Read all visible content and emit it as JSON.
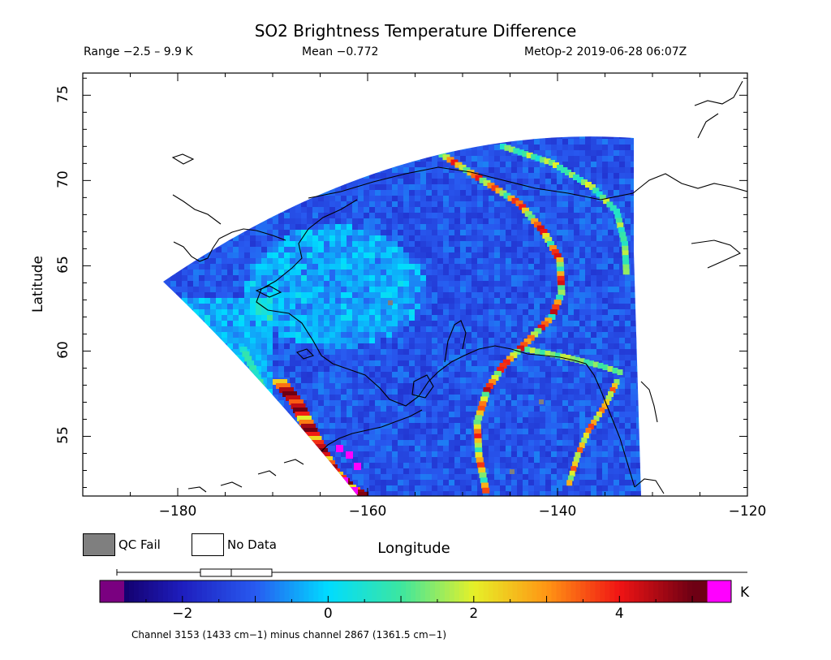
{
  "header": {
    "title": "SO2 Brightness Temperature Difference",
    "range": "Range −2.5 – 9.9 K",
    "mean": "Mean −0.772",
    "satellite": "MetOp-2 2019-06-28 06:07Z"
  },
  "axes": {
    "xlabel": "Longitude",
    "ylabel": "Latitude",
    "x_ticks": [
      "−180",
      "−160",
      "−140",
      "−120"
    ],
    "x_values": [
      -180,
      -160,
      -140,
      -120
    ],
    "y_ticks": [
      "55",
      "60",
      "65",
      "70",
      "75"
    ],
    "y_values": [
      55,
      60,
      65,
      70,
      75
    ],
    "xlim": [
      -190,
      -120
    ],
    "ylim": [
      51.5,
      76.3
    ]
  },
  "legend": {
    "qc_fail_label": "QC Fail",
    "no_data_label": "No Data",
    "qc_fail_color": "#7f7f7f",
    "no_data_color": "#ffffff"
  },
  "colorbar": {
    "unit": "K",
    "tick_labels": [
      "−2",
      "0",
      "2",
      "4"
    ],
    "tick_values": [
      -2,
      0,
      2,
      4
    ],
    "range": [
      -2.8,
      5.2
    ],
    "under_color": "#7a0080",
    "over_color": "#ff00ff",
    "boxplot": {
      "whisker_low": -2.5,
      "q1": -1.45,
      "median": -1.0,
      "q3": -0.5,
      "whisker_high": 5.5
    }
  },
  "footnote": "Channel 3153 (1433 cm−1) minus channel 2867 (1361.5 cm−1)",
  "map_colors": {
    "swath_base": "#2f57e8",
    "swath_light": "#3a8ef0",
    "plume_cyan": "#33d6e0",
    "plume_green": "#8ef06a",
    "plume_yellow": "#f3e62d",
    "plume_orange": "#f08a1e",
    "plume_red": "#d81e1e",
    "plume_dark": "#8a0a14",
    "plume_magenta": "#ff00ff",
    "coast": "#000000"
  }
}
